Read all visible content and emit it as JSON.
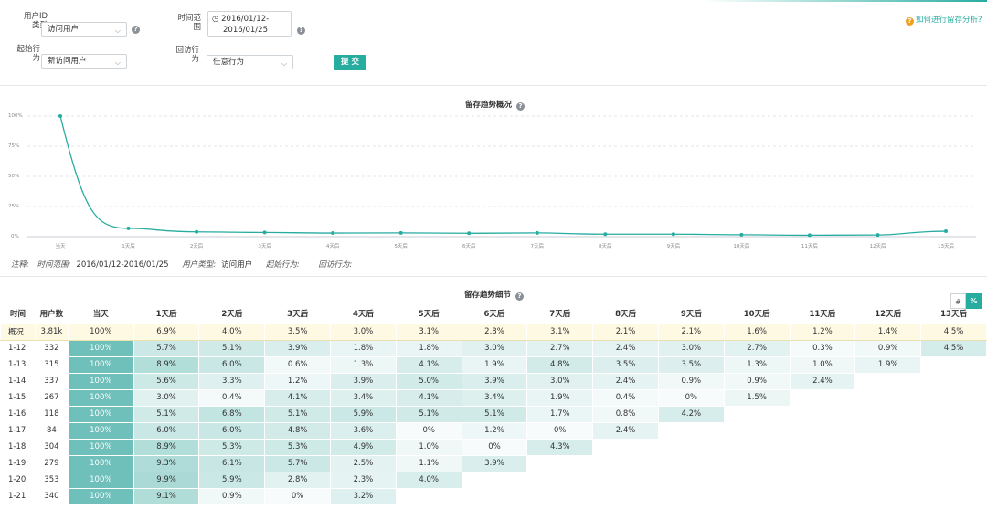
{
  "filters": {
    "user_id_type_label_1": "用户ID",
    "user_id_type_label_2": "类型",
    "user_id_type_value": "访问用户",
    "time_range_label_1": "时间范",
    "time_range_label_2": "围",
    "time_range_line1": "2016/01/12-",
    "time_range_line2": "2016/01/25",
    "start_action_label_1": "起始行",
    "start_action_label_2": "为",
    "start_action_value": "新访问用户",
    "return_action_label_1": "回访行",
    "return_action_label_2": "为",
    "return_action_value": "任意行为",
    "submit_label": "提 交",
    "help_link": "如何进行留存分析?",
    "chevron": "⌵",
    "clock_icon": "◷",
    "qmark": "?"
  },
  "overview": {
    "title": "留存趋势概况",
    "y_ticks": [
      "100%",
      "75%",
      "50%",
      "25%",
      "0%"
    ],
    "x_ticks": [
      "当天",
      "1天后",
      "2天后",
      "3天后",
      "4天后",
      "5天后",
      "6天后",
      "7天后",
      "8天后",
      "9天后",
      "10天后",
      "11天后",
      "12天后",
      "13天后"
    ]
  },
  "chart_data": {
    "type": "line",
    "categories": [
      "当天",
      "1天后",
      "2天后",
      "3天后",
      "4天后",
      "5天后",
      "6天后",
      "7天后",
      "8天后",
      "9天后",
      "10天后",
      "11天后",
      "12天后",
      "13天后"
    ],
    "values": [
      100,
      6.9,
      4.0,
      3.5,
      3.0,
      3.1,
      2.8,
      3.1,
      2.1,
      2.1,
      1.6,
      1.2,
      1.4,
      4.5
    ],
    "ylim": [
      0,
      100
    ],
    "y_ticks": [
      0,
      25,
      50,
      75,
      100
    ],
    "grid": true,
    "color": "#27aca0"
  },
  "note": {
    "label": "注释:",
    "time_label": "时间范围:",
    "time_value": "2016/01/12-2016/01/25",
    "user_type_label": "用户类型:",
    "user_type_value": "访问用户",
    "start_label": "起始行为:",
    "return_label": "回访行为:"
  },
  "detail": {
    "title": "留存趋势细节",
    "toggle_hash": "#",
    "toggle_pct": "%",
    "headers": [
      "时间",
      "用户数",
      "当天",
      "1天后",
      "2天后",
      "3天后",
      "4天后",
      "5天后",
      "6天后",
      "7天后",
      "8天后",
      "9天后",
      "10天后",
      "11天后",
      "12天后",
      "13天后"
    ],
    "summary": {
      "label": "概况",
      "count": "3.81k",
      "cells": [
        "100%",
        "6.9%",
        "4.0%",
        "3.5%",
        "3.0%",
        "3.1%",
        "2.8%",
        "3.1%",
        "2.1%",
        "2.1%",
        "1.6%",
        "1.2%",
        "1.4%",
        "4.5%"
      ]
    },
    "rows": [
      {
        "label": "1-12",
        "count": "332",
        "cells": [
          "100%",
          "5.7%",
          "5.1%",
          "3.9%",
          "1.8%",
          "1.8%",
          "3.0%",
          "2.7%",
          "2.4%",
          "3.0%",
          "2.7%",
          "0.3%",
          "0.9%",
          "4.5%"
        ]
      },
      {
        "label": "1-13",
        "count": "315",
        "cells": [
          "100%",
          "8.9%",
          "6.0%",
          "0.6%",
          "1.3%",
          "4.1%",
          "1.9%",
          "4.8%",
          "3.5%",
          "3.5%",
          "1.3%",
          "1.0%",
          "1.9%"
        ]
      },
      {
        "label": "1-14",
        "count": "337",
        "cells": [
          "100%",
          "5.6%",
          "3.3%",
          "1.2%",
          "3.9%",
          "5.0%",
          "3.9%",
          "3.0%",
          "2.4%",
          "0.9%",
          "0.9%",
          "2.4%"
        ]
      },
      {
        "label": "1-15",
        "count": "267",
        "cells": [
          "100%",
          "3.0%",
          "0.4%",
          "4.1%",
          "3.4%",
          "4.1%",
          "3.4%",
          "1.9%",
          "0.4%",
          "0%",
          "1.5%"
        ]
      },
      {
        "label": "1-16",
        "count": "118",
        "cells": [
          "100%",
          "5.1%",
          "6.8%",
          "5.1%",
          "5.9%",
          "5.1%",
          "5.1%",
          "1.7%",
          "0.8%",
          "4.2%"
        ]
      },
      {
        "label": "1-17",
        "count": "84",
        "cells": [
          "100%",
          "6.0%",
          "6.0%",
          "4.8%",
          "3.6%",
          "0%",
          "1.2%",
          "0%",
          "2.4%"
        ]
      },
      {
        "label": "1-18",
        "count": "304",
        "cells": [
          "100%",
          "8.9%",
          "5.3%",
          "5.3%",
          "4.9%",
          "1.0%",
          "0%",
          "4.3%"
        ]
      },
      {
        "label": "1-19",
        "count": "279",
        "cells": [
          "100%",
          "9.3%",
          "6.1%",
          "5.7%",
          "2.5%",
          "1.1%",
          "3.9%"
        ]
      },
      {
        "label": "1-20",
        "count": "353",
        "cells": [
          "100%",
          "9.9%",
          "5.9%",
          "2.8%",
          "2.3%",
          "4.0%"
        ]
      },
      {
        "label": "1-21",
        "count": "340",
        "cells": [
          "100%",
          "9.1%",
          "0.9%",
          "0%",
          "3.2%"
        ]
      }
    ]
  }
}
